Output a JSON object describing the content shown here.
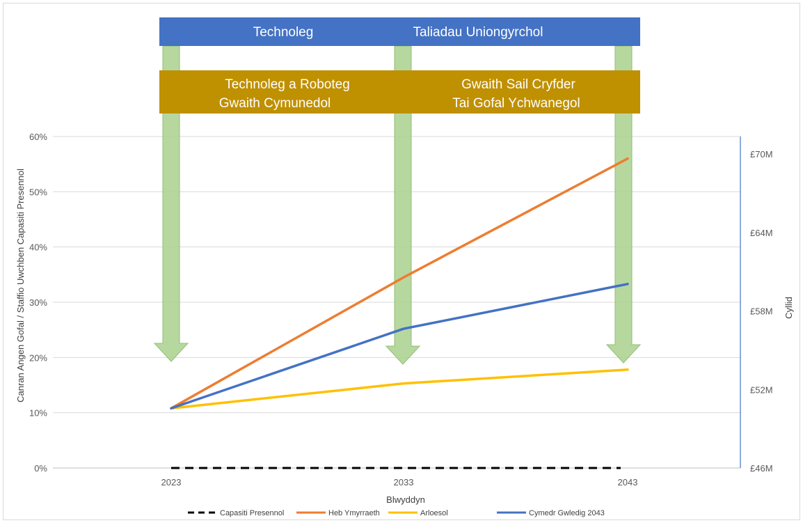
{
  "banners": {
    "top": {
      "left": "Technoleg",
      "right": "Taliadau Uniongyrchol",
      "color": "#4472c4"
    },
    "middle": {
      "left_line1": "Technoleg a Roboteg",
      "left_line2": "Gwaith Cymunedol",
      "right_line1": "Gwaith Sail Cryfder",
      "right_line2": "Tai Gofal Ychwanegol",
      "color": "#bf9000"
    },
    "arrow_color": "#a9d18e"
  },
  "chart_data": {
    "type": "line",
    "x": [
      2023,
      2033,
      2043
    ],
    "x_tick_labels": [
      "2023",
      "2033",
      "2043"
    ],
    "xlabel": "Blwyddyn",
    "ylabel": "Canran Angen Gofal / Staffio Uwchben Capasiti Presennol",
    "y2label": "Cyllid",
    "ylim": [
      0,
      60
    ],
    "y_ticks": [
      0,
      10,
      20,
      30,
      40,
      50,
      60
    ],
    "y_tick_labels": [
      "0%",
      "10%",
      "20%",
      "30%",
      "40%",
      "50%",
      "60%"
    ],
    "y2lim": [
      46,
      70
    ],
    "y2_ticks": [
      46,
      52,
      58,
      64,
      70
    ],
    "y2_tick_labels": [
      "£46M",
      "£52M",
      "£58M",
      "£64M",
      "£70M"
    ],
    "grid": true,
    "legend_position": "bottom",
    "series": [
      {
        "name": "Capasiti Presennol",
        "values": [
          0,
          0,
          0
        ],
        "color": "#000000",
        "dash": true
      },
      {
        "name": "Heb Ymyrraeth",
        "values": [
          10.8,
          34.5,
          56
        ],
        "color": "#ed7d31",
        "dash": false
      },
      {
        "name": "Arloesol",
        "values": [
          10.8,
          15.3,
          17.8
        ],
        "color": "#ffc000",
        "dash": false
      },
      {
        "name": "Cymedr Gwledig 2043",
        "values": [
          10.8,
          25.2,
          33.3
        ],
        "color": "#4472c4",
        "dash": false
      }
    ]
  }
}
